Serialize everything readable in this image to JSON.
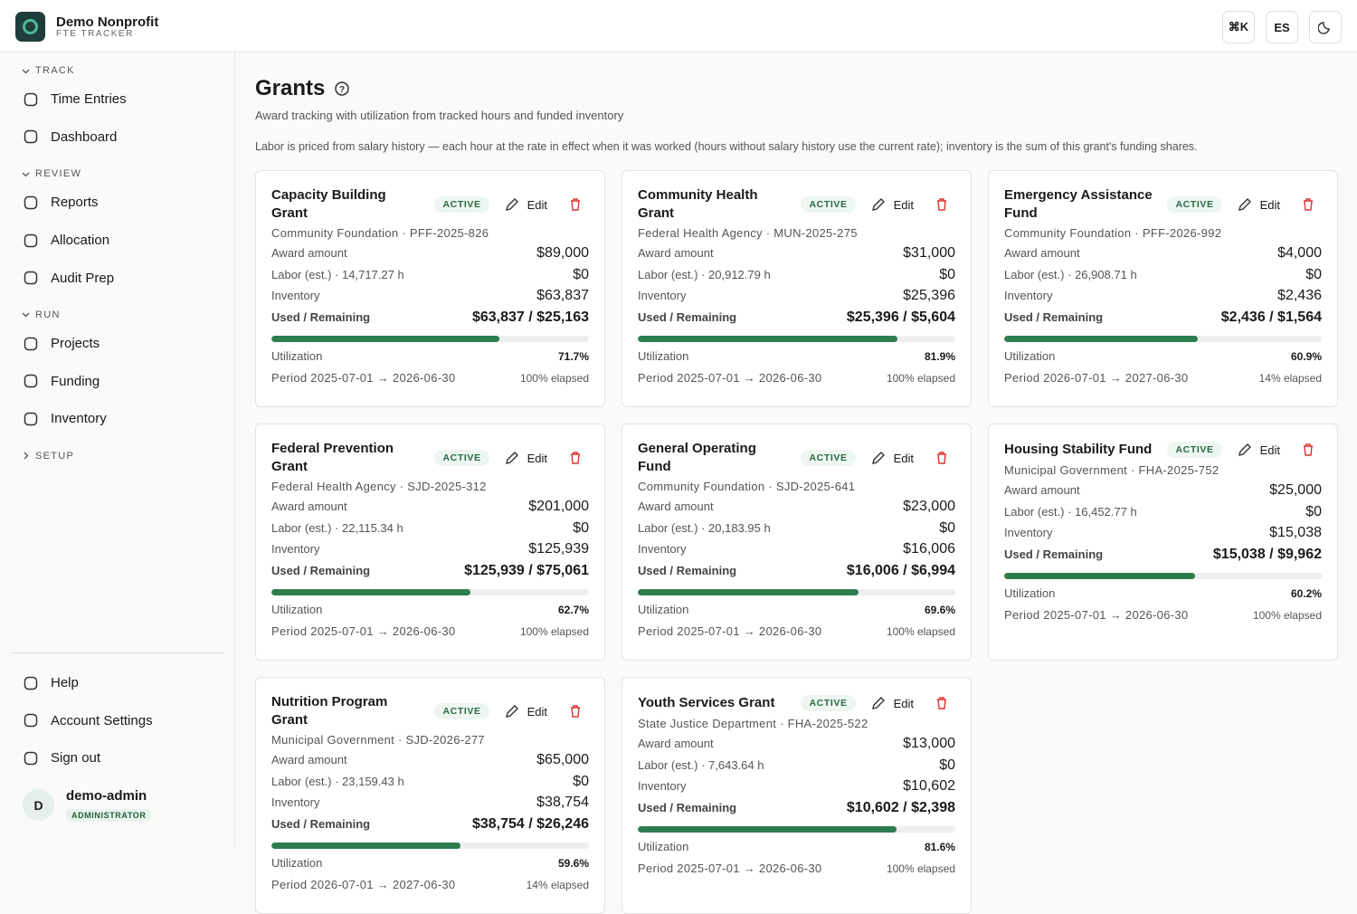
{
  "app": {
    "name": "Demo Nonprofit",
    "subtitle": "FTE TRACKER"
  },
  "topbar": {
    "buttons": [
      "⌘K",
      "ES"
    ]
  },
  "sidebar": {
    "sections": [
      {
        "title": "TRACK",
        "items": [
          "Time Entries",
          "Dashboard"
        ]
      },
      {
        "title": "REVIEW",
        "items": [
          "Reports",
          "Allocation",
          "Audit Prep"
        ]
      },
      {
        "title": "RUN",
        "items": [
          "Projects",
          "Funding",
          "Inventory"
        ]
      },
      {
        "title": "SETUP",
        "items": []
      }
    ],
    "bottom": [
      "Help",
      "Account Settings",
      "Sign out"
    ],
    "user": {
      "initial": "D",
      "name": "demo-admin",
      "role": "ADMINISTRATOR"
    }
  },
  "page": {
    "title": "Grants",
    "subtitle": "Award tracking with utilization from tracked hours and funded inventory",
    "note": "Labor is priced from salary history — each hour at the rate in effect when it was worked (hours without salary history use the current rate); inventory is the sum of this grant's funding shares."
  },
  "labels": {
    "award": "Award amount",
    "inventory": "Inventory",
    "used": "Used / Remaining",
    "utilization": "Utilization",
    "edit": "Edit"
  },
  "grants": [
    {
      "name": "Capacity Building Grant",
      "status": "ACTIVE",
      "meta": "Community Foundation · PFF-2025-826",
      "award": "$89,000",
      "labor_label": "Labor (est.) · 14,717.27 h",
      "labor": "$0",
      "inventory": "$63,837",
      "used": "$63,837 / $25,163",
      "utilization": 71.7,
      "utilization_label": "71.7%",
      "period": "Period 2025-07-01 → 2026-06-30",
      "elapsed": "100% elapsed"
    },
    {
      "name": "Community Health Grant",
      "status": "ACTIVE",
      "meta": "Federal Health Agency · MUN-2025-275",
      "award": "$31,000",
      "labor_label": "Labor (est.) · 20,912.79 h",
      "labor": "$0",
      "inventory": "$25,396",
      "used": "$25,396 / $5,604",
      "utilization": 81.9,
      "utilization_label": "81.9%",
      "period": "Period 2025-07-01 → 2026-06-30",
      "elapsed": "100% elapsed"
    },
    {
      "name": "Emergency Assistance Fund",
      "status": "ACTIVE",
      "meta": "Community Foundation · PFF-2026-992",
      "award": "$4,000",
      "labor_label": "Labor (est.) · 26,908.71 h",
      "labor": "$0",
      "inventory": "$2,436",
      "used": "$2,436 / $1,564",
      "utilization": 60.9,
      "utilization_label": "60.9%",
      "period": "Period 2026-07-01 → 2027-06-30",
      "elapsed": "14% elapsed"
    },
    {
      "name": "Federal Prevention Grant",
      "status": "ACTIVE",
      "meta": "Federal Health Agency · SJD-2025-312",
      "award": "$201,000",
      "labor_label": "Labor (est.) · 22,115.34 h",
      "labor": "$0",
      "inventory": "$125,939",
      "used": "$125,939 / $75,061",
      "utilization": 62.7,
      "utilization_label": "62.7%",
      "period": "Period 2025-07-01 → 2026-06-30",
      "elapsed": "100% elapsed"
    },
    {
      "name": "General Operating Fund",
      "status": "ACTIVE",
      "meta": "Community Foundation · SJD-2025-641",
      "award": "$23,000",
      "labor_label": "Labor (est.) · 20,183.95 h",
      "labor": "$0",
      "inventory": "$16,006",
      "used": "$16,006 / $6,994",
      "utilization": 69.6,
      "utilization_label": "69.6%",
      "period": "Period 2025-07-01 → 2026-06-30",
      "elapsed": "100% elapsed"
    },
    {
      "name": "Housing Stability Fund",
      "status": "ACTIVE",
      "meta": "Municipal Government · FHA-2025-752",
      "award": "$25,000",
      "labor_label": "Labor (est.) · 16,452.77 h",
      "labor": "$0",
      "inventory": "$15,038",
      "used": "$15,038 / $9,962",
      "utilization": 60.2,
      "utilization_label": "60.2%",
      "period": "Period 2025-07-01 → 2026-06-30",
      "elapsed": "100% elapsed"
    },
    {
      "name": "Nutrition Program Grant",
      "status": "ACTIVE",
      "meta": "Municipal Government · SJD-2026-277",
      "award": "$65,000",
      "labor_label": "Labor (est.) · 23,159.43 h",
      "labor": "$0",
      "inventory": "$38,754",
      "used": "$38,754 / $26,246",
      "utilization": 59.6,
      "utilization_label": "59.6%",
      "period": "Period 2026-07-01 → 2027-06-30",
      "elapsed": "14% elapsed"
    },
    {
      "name": "Youth Services Grant",
      "status": "ACTIVE",
      "meta": "State Justice Department · FHA-2025-522",
      "award": "$13,000",
      "labor_label": "Labor (est.) · 7,643.64 h",
      "labor": "$0",
      "inventory": "$10,602",
      "used": "$10,602 / $2,398",
      "utilization": 81.6,
      "utilization_label": "81.6%",
      "period": "Period 2025-07-01 → 2026-06-30",
      "elapsed": "100% elapsed"
    }
  ]
}
